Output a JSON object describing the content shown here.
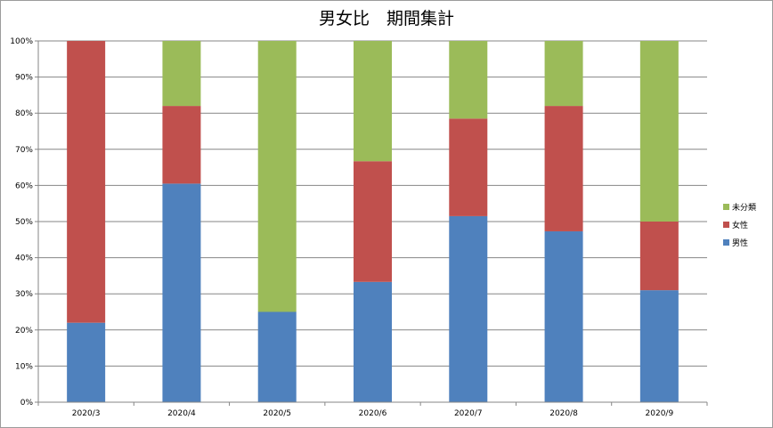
{
  "chart_data": {
    "type": "bar",
    "stacked": true,
    "title": "男女比　期間集計",
    "categories": [
      "2020/3",
      "2020/4",
      "2020/5",
      "2020/6",
      "2020/7",
      "2020/8",
      "2020/9"
    ],
    "series": [
      {
        "name": "男性",
        "color": "#4f81bd",
        "values": [
          22,
          60.5,
          25,
          33.3,
          51.5,
          47.3,
          31
        ]
      },
      {
        "name": "女性",
        "color": "#c0504d",
        "values": [
          78,
          21.5,
          0,
          33.4,
          27,
          34.7,
          19
        ]
      },
      {
        "name": "未分類",
        "color": "#9bbb59",
        "values": [
          0,
          18,
          75,
          33.3,
          21.5,
          18,
          50
        ]
      }
    ],
    "ylim": [
      0,
      100
    ],
    "yticks": [
      "0%",
      "10%",
      "20%",
      "30%",
      "40%",
      "50%",
      "60%",
      "70%",
      "80%",
      "90%",
      "100%"
    ],
    "grid": true,
    "legend": "right",
    "xlabel": "",
    "ylabel": ""
  }
}
